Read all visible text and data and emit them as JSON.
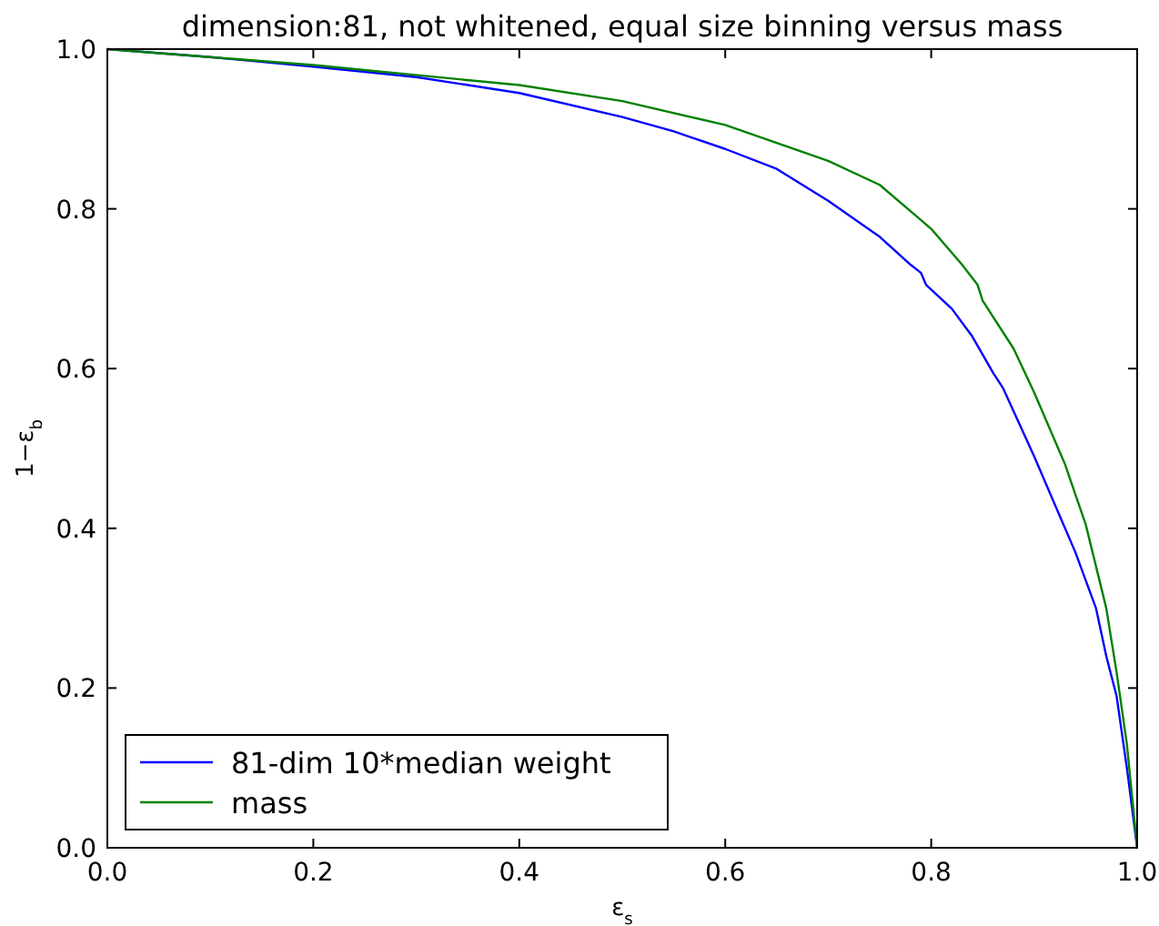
{
  "chart_data": {
    "type": "line",
    "title": "dimension:81, not whitened, equal size binning versus mass",
    "xlabel": "ε$_{s}$",
    "ylabel": "1−ε$_{b}$",
    "xlim": [
      0,
      1
    ],
    "ylim": [
      0,
      1
    ],
    "xticks": [
      {
        "value": 0,
        "label": "0.0"
      },
      {
        "value": 0.2,
        "label": "0.2"
      },
      {
        "value": 0.4,
        "label": "0.4"
      },
      {
        "value": 0.6,
        "label": "0.6"
      },
      {
        "value": 0.8,
        "label": "0.8"
      },
      {
        "value": 1,
        "label": "1.0"
      }
    ],
    "yticks": [
      {
        "value": 0,
        "label": "0.0"
      },
      {
        "value": 0.2,
        "label": "0.2"
      },
      {
        "value": 0.4,
        "label": "0.4"
      },
      {
        "value": 0.6,
        "label": "0.6"
      },
      {
        "value": 0.8,
        "label": "0.8"
      },
      {
        "value": 1,
        "label": "1.0"
      }
    ],
    "grid": false,
    "legend": "bottom left",
    "marker": "none",
    "line_style": "solid",
    "series": [
      {
        "name": "81-dim 10*median weight",
        "color": "#0000ff",
        "x": [
          0,
          0.1,
          0.2,
          0.3,
          0.4,
          0.5,
          0.55,
          0.6,
          0.65,
          0.7,
          0.75,
          0.78,
          0.79,
          0.795,
          0.82,
          0.84,
          0.86,
          0.87,
          0.9,
          0.92,
          0.94,
          0.96,
          0.97,
          0.98,
          0.99,
          1.0
        ],
        "values": [
          1.0,
          0.99,
          0.978,
          0.965,
          0.945,
          0.915,
          0.897,
          0.875,
          0.85,
          0.81,
          0.765,
          0.73,
          0.72,
          0.705,
          0.675,
          0.64,
          0.595,
          0.575,
          0.49,
          0.43,
          0.37,
          0.3,
          0.24,
          0.19,
          0.1,
          0.0
        ]
      },
      {
        "name": "mass",
        "color": "#008000",
        "x": [
          0,
          0.2,
          0.4,
          0.5,
          0.6,
          0.7,
          0.75,
          0.8,
          0.83,
          0.845,
          0.85,
          0.88,
          0.9,
          0.93,
          0.95,
          0.97,
          0.98,
          0.99,
          1.0
        ],
        "values": [
          1.0,
          0.98,
          0.955,
          0.935,
          0.905,
          0.86,
          0.83,
          0.775,
          0.73,
          0.705,
          0.685,
          0.625,
          0.57,
          0.48,
          0.405,
          0.3,
          0.22,
          0.13,
          0.0
        ]
      }
    ]
  }
}
